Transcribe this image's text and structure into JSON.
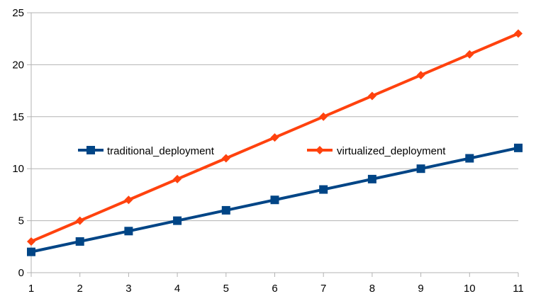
{
  "chart_data": {
    "type": "line",
    "title": "",
    "xlabel": "",
    "ylabel": "",
    "x": [
      1,
      2,
      3,
      4,
      5,
      6,
      7,
      8,
      9,
      10,
      11
    ],
    "xlim": [
      1,
      11
    ],
    "ylim": [
      0,
      25
    ],
    "y_ticks": [
      0,
      5,
      10,
      15,
      20,
      25
    ],
    "grid": "horizontal",
    "legend_position": "inside-middle",
    "series": [
      {
        "name": "traditional_deployment",
        "color": "#004586",
        "marker": "square",
        "values": [
          2,
          3,
          4,
          5,
          6,
          7,
          8,
          9,
          10,
          11,
          12
        ]
      },
      {
        "name": "virtualized_deployment",
        "color": "#ff420e",
        "marker": "diamond",
        "values": [
          3,
          5,
          7,
          9,
          11,
          13,
          15,
          17,
          19,
          21,
          23
        ]
      }
    ]
  }
}
